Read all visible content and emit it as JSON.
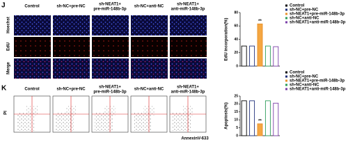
{
  "panels": {
    "J": {
      "label": "J",
      "columns": [
        [
          "Control"
        ],
        [
          "sh-NC+pre-NC"
        ],
        [
          "sh-NEAT1+",
          "pre-miR-148b-3p"
        ],
        [
          "sh-NC+anti-NC"
        ],
        [
          "sh-NEAT1+",
          "anti-miR-148b-3p"
        ]
      ],
      "rows": [
        "Hoechst",
        "EdU",
        "Merge"
      ]
    },
    "K": {
      "label": "K",
      "columns": [
        [
          "Control"
        ],
        [
          "sh-NC+pre-NC"
        ],
        [
          "sh-NEAT1+",
          "pre-miR-148b-3p"
        ],
        [
          "sh-NC+anti-NC"
        ],
        [
          "sh-NEAT1+",
          "anti-miR-148b-3p"
        ]
      ],
      "y_axis": "PI",
      "x_axis": "AnnexinV-633"
    }
  },
  "chart_data": [
    {
      "type": "bar",
      "ylabel": "EdU incorporation(%)",
      "categories": [
        "Control",
        "sh-NC+pre-NC",
        "sh-NEAT1+pre-miR-148b-3p",
        "sh-NC+anti-NC",
        "sh-NEAT1+anti-miR-148b-3p"
      ],
      "values": [
        30,
        30,
        63,
        30,
        29
      ],
      "colors": [
        "#000000",
        "#1f2f7a",
        "#e8912a",
        "#2e9e5b",
        "#7a3fa8"
      ],
      "fills": [
        "#ffffff",
        "#ffffff",
        "#f5a742",
        "#ffffff",
        "#ffffff"
      ],
      "annotations": [
        null,
        null,
        "**",
        null,
        null
      ],
      "ylim": [
        0,
        80
      ],
      "yticks": [
        0,
        20,
        40,
        60,
        80
      ]
    },
    {
      "type": "bar",
      "ylabel": "Apoptosis(%)",
      "categories": [
        "Control",
        "sh-NC+pre-NC",
        "sh-NEAT1+pre-miR-148b-3p",
        "sh-NC+anti-NC",
        "sh-NEAT1+anti-miR-148b-3p"
      ],
      "values": [
        22,
        22,
        7.5,
        22,
        20.5
      ],
      "colors": [
        "#000000",
        "#1f2f7a",
        "#e8912a",
        "#2e9e5b",
        "#7a3fa8"
      ],
      "fills": [
        "#ffffff",
        "#ffffff",
        "#f5a742",
        "#ffffff",
        "#ffffff"
      ],
      "annotations": [
        null,
        null,
        "**",
        null,
        null
      ],
      "ylim": [
        0,
        25
      ],
      "yticks": [
        0,
        5,
        10,
        15,
        20,
        25
      ]
    }
  ]
}
